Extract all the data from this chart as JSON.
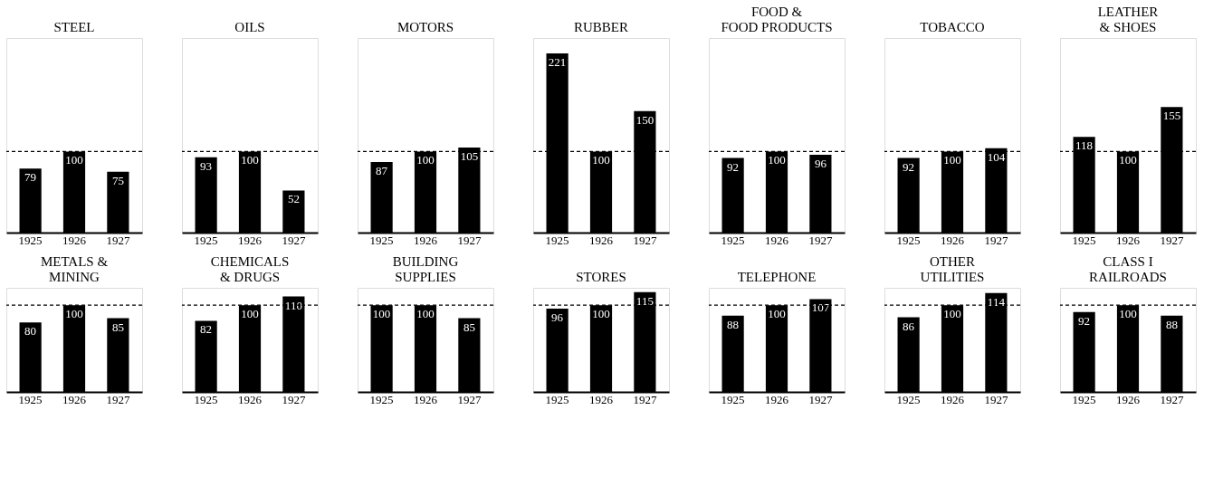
{
  "chart_data": [
    {
      "type": "bar",
      "title": "STEEL",
      "categories": [
        "1925",
        "1926",
        "1927"
      ],
      "values": [
        79,
        100,
        75
      ],
      "color": "#000000",
      "data_labels": true,
      "tick_labels": "x",
      "grid": false,
      "ref_lines": [
        {
          "axis": "y",
          "value": 100,
          "line_style": "dashed",
          "color": "#000000"
        }
      ]
    },
    {
      "type": "bar",
      "title": "OILS",
      "categories": [
        "1925",
        "1926",
        "1927"
      ],
      "values": [
        93,
        100,
        52
      ],
      "color": "#000000",
      "data_labels": true,
      "tick_labels": "x",
      "grid": false,
      "ref_lines": [
        {
          "axis": "y",
          "value": 100,
          "line_style": "dashed",
          "color": "#000000"
        }
      ]
    },
    {
      "type": "bar",
      "title": "MOTORS",
      "categories": [
        "1925",
        "1926",
        "1927"
      ],
      "values": [
        87,
        100,
        105
      ],
      "color": "#000000",
      "data_labels": true,
      "tick_labels": "x",
      "grid": false,
      "ref_lines": [
        {
          "axis": "y",
          "value": 100,
          "line_style": "dashed",
          "color": "#000000"
        }
      ]
    },
    {
      "type": "bar",
      "title": "RUBBER",
      "categories": [
        "1925",
        "1926",
        "1927"
      ],
      "values": [
        221,
        100,
        150
      ],
      "color": "#000000",
      "data_labels": true,
      "tick_labels": "x",
      "grid": false,
      "ref_lines": [
        {
          "axis": "y",
          "value": 100,
          "line_style": "dashed",
          "color": "#000000"
        }
      ]
    },
    {
      "type": "bar",
      "title": "FOOD &\nFOOD PRODUCTS",
      "categories": [
        "1925",
        "1926",
        "1927"
      ],
      "values": [
        92,
        100,
        96
      ],
      "color": "#000000",
      "data_labels": true,
      "tick_labels": "x",
      "grid": false,
      "ref_lines": [
        {
          "axis": "y",
          "value": 100,
          "line_style": "dashed",
          "color": "#000000"
        }
      ]
    },
    {
      "type": "bar",
      "title": "TOBACCO",
      "categories": [
        "1925",
        "1926",
        "1927"
      ],
      "values": [
        92,
        100,
        104
      ],
      "color": "#000000",
      "data_labels": true,
      "tick_labels": "x",
      "grid": false,
      "ref_lines": [
        {
          "axis": "y",
          "value": 100,
          "line_style": "dashed",
          "color": "#000000"
        }
      ]
    },
    {
      "type": "bar",
      "title": "LEATHER\n& SHOES",
      "categories": [
        "1925",
        "1926",
        "1927"
      ],
      "values": [
        118,
        100,
        155
      ],
      "color": "#000000",
      "data_labels": true,
      "tick_labels": "x",
      "grid": false,
      "ref_lines": [
        {
          "axis": "y",
          "value": 100,
          "line_style": "dashed",
          "color": "#000000"
        }
      ]
    },
    {
      "type": "bar",
      "title": "METALS &\nMINING",
      "categories": [
        "1925",
        "1926",
        "1927"
      ],
      "values": [
        80,
        100,
        85
      ],
      "color": "#000000",
      "data_labels": true,
      "tick_labels": "x",
      "grid": false,
      "ref_lines": [
        {
          "axis": "y",
          "value": 100,
          "line_style": "dashed",
          "color": "#000000"
        }
      ]
    },
    {
      "type": "bar",
      "title": "CHEMICALS\n& DRUGS",
      "categories": [
        "1925",
        "1926",
        "1927"
      ],
      "values": [
        82,
        100,
        110
      ],
      "color": "#000000",
      "data_labels": true,
      "tick_labels": "x",
      "grid": false,
      "ref_lines": [
        {
          "axis": "y",
          "value": 100,
          "line_style": "dashed",
          "color": "#000000"
        }
      ]
    },
    {
      "type": "bar",
      "title": "BUILDING\nSUPPLIES",
      "categories": [
        "1925",
        "1926",
        "1927"
      ],
      "values": [
        100,
        100,
        85
      ],
      "color": "#000000",
      "data_labels": true,
      "tick_labels": "x",
      "grid": false,
      "ref_lines": [
        {
          "axis": "y",
          "value": 100,
          "line_style": "dashed",
          "color": "#000000"
        }
      ]
    },
    {
      "type": "bar",
      "title": "STORES",
      "categories": [
        "1925",
        "1926",
        "1927"
      ],
      "values": [
        96,
        100,
        115
      ],
      "color": "#000000",
      "data_labels": true,
      "tick_labels": "x",
      "grid": false,
      "ref_lines": [
        {
          "axis": "y",
          "value": 100,
          "line_style": "dashed",
          "color": "#000000"
        }
      ]
    },
    {
      "type": "bar",
      "title": "TELEPHONE",
      "categories": [
        "1925",
        "1926",
        "1927"
      ],
      "values": [
        88,
        100,
        107
      ],
      "color": "#000000",
      "data_labels": true,
      "tick_labels": "x",
      "grid": false,
      "ref_lines": [
        {
          "axis": "y",
          "value": 100,
          "line_style": "dashed",
          "color": "#000000"
        }
      ]
    },
    {
      "type": "bar",
      "title": "OTHER\nUTILITIES",
      "categories": [
        "1925",
        "1926",
        "1927"
      ],
      "values": [
        86,
        100,
        114
      ],
      "color": "#000000",
      "data_labels": true,
      "tick_labels": "x",
      "grid": false,
      "ref_lines": [
        {
          "axis": "y",
          "value": 100,
          "line_style": "dashed",
          "color": "#000000"
        }
      ]
    },
    {
      "type": "bar",
      "title": "CLASS I\nRAILROADS",
      "categories": [
        "1925",
        "1926",
        "1927"
      ],
      "values": [
        92,
        100,
        88
      ],
      "color": "#000000",
      "data_labels": true,
      "tick_labels": "x",
      "grid": false,
      "ref_lines": [
        {
          "axis": "y",
          "value": 100,
          "line_style": "dashed",
          "color": "#000000"
        }
      ]
    }
  ]
}
